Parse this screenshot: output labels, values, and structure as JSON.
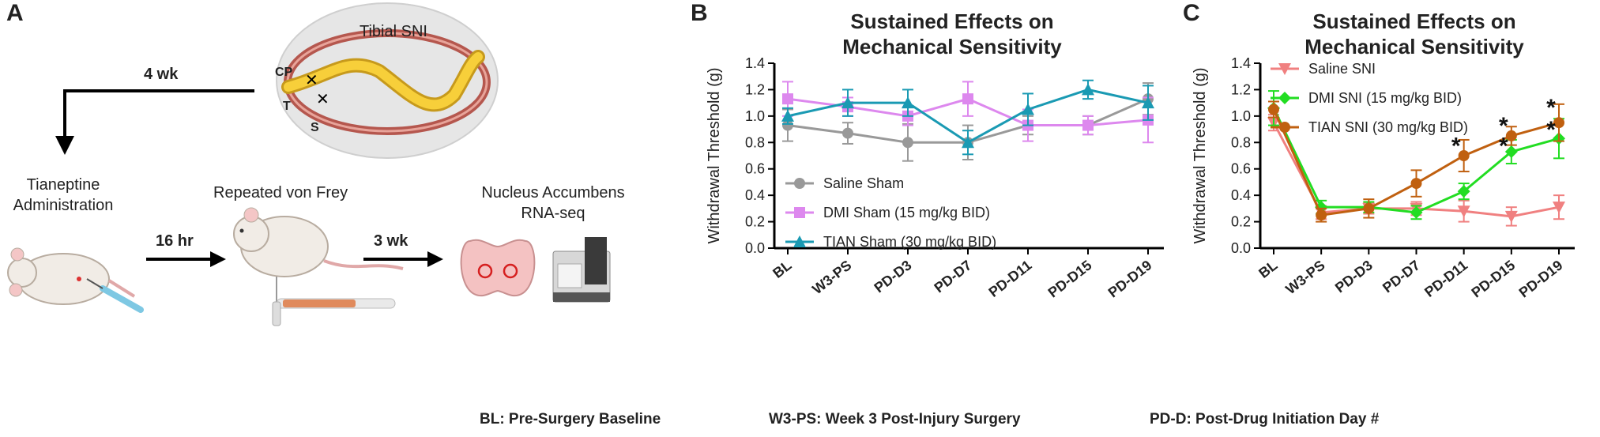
{
  "panels": {
    "a": "A",
    "b": "B",
    "c": "C"
  },
  "schematic": {
    "tibial_sni": "Tibial SNI",
    "nerve_labels": [
      "CP",
      "T",
      "S"
    ],
    "weeks_4": "4 wk",
    "tianeptine": [
      "Tianeptine",
      "Administration"
    ],
    "hr_16": "16 hr",
    "von_frey": "Repeated von Frey",
    "weeks_3": "3 wk",
    "accumbens": [
      "Nucleus Accumbens",
      "RNA-seq"
    ]
  },
  "footnotes": {
    "bl": "BL: Pre-Surgery Baseline",
    "w3": "W3-PS: Week 3 Post-Injury Surgery",
    "pd": "PD-D: Post-Drug Initiation Day #"
  },
  "chart_data": [
    {
      "type": "line",
      "title": [
        "Sustained Effects on",
        "Mechanical Sensitivity"
      ],
      "xlabel": "",
      "ylabel": "Withdrawal Threshold (g)",
      "categories": [
        "BL",
        "W3-PS",
        "PD-D3",
        "PD-D7",
        "PD-D11",
        "PD-D15",
        "PD-D19"
      ],
      "ylim": [
        0,
        1.4
      ],
      "yticks": [
        "0.0",
        "0.2",
        "0.4",
        "0.6",
        "0.8",
        "1.0",
        "1.2",
        "1.4"
      ],
      "legend_position": "bottom-center",
      "series": [
        {
          "name": "Saline Sham",
          "color": "#999999",
          "marker": "circle",
          "values": [
            0.93,
            0.87,
            0.8,
            0.8,
            0.93,
            0.93,
            1.13
          ],
          "errors": [
            0.12,
            0.08,
            0.14,
            0.13,
            0.07,
            0.07,
            0.12
          ]
        },
        {
          "name": "DMI Sham (15 mg/kg BID)",
          "color": "#dd88ee",
          "marker": "square",
          "values": [
            1.13,
            1.07,
            1.0,
            1.13,
            0.93,
            0.93,
            0.97
          ],
          "errors": [
            0.13,
            0.07,
            0.07,
            0.13,
            0.12,
            0.07,
            0.17
          ]
        },
        {
          "name": "TIAN Sham (30 mg/kg BID)",
          "color": "#1a9ab3",
          "marker": "triangle",
          "values": [
            1.0,
            1.1,
            1.1,
            0.8,
            1.05,
            1.2,
            1.1
          ],
          "errors": [
            0.06,
            0.1,
            0.1,
            0.09,
            0.12,
            0.07,
            0.13
          ]
        }
      ],
      "significance": []
    },
    {
      "type": "line",
      "title": [
        "Sustained Effects on",
        "Mechanical Sensitivity"
      ],
      "xlabel": "",
      "ylabel": "Withdrawal Threshold (g)",
      "categories": [
        "BL",
        "W3-PS",
        "PD-D3",
        "PD-D7",
        "PD-D11",
        "PD-D15",
        "PD-D19"
      ],
      "ylim": [
        0,
        1.4
      ],
      "yticks": [
        "0.0",
        "0.2",
        "0.4",
        "0.6",
        "0.8",
        "1.0",
        "1.2",
        "1.4"
      ],
      "legend_position": "top-right",
      "series": [
        {
          "name": "Saline SNI",
          "color": "#f08080",
          "marker": "triangle-down",
          "values": [
            0.95,
            0.27,
            0.3,
            0.3,
            0.28,
            0.24,
            0.31
          ],
          "errors": [
            0.06,
            0.05,
            0.04,
            0.05,
            0.08,
            0.07,
            0.09
          ]
        },
        {
          "name": "DMI SNI (15 mg/kg BID)",
          "color": "#22dd22",
          "marker": "diamond",
          "values": [
            1.06,
            0.31,
            0.31,
            0.27,
            0.43,
            0.73,
            0.83
          ],
          "errors": [
            0.13,
            0.05,
            0.04,
            0.05,
            0.06,
            0.09,
            0.15
          ]
        },
        {
          "name": "TIAN SNI (30 mg/kg BID)",
          "color": "#c06010",
          "marker": "circle",
          "values": [
            1.05,
            0.25,
            0.3,
            0.49,
            0.7,
            0.85,
            0.95
          ],
          "errors": [
            0.06,
            0.05,
            0.07,
            0.1,
            0.12,
            0.07,
            0.14
          ]
        }
      ],
      "significance": [
        {
          "category": "PD-D11",
          "label": "*",
          "value": 0.8
        },
        {
          "category": "PD-D15",
          "label": "*",
          "value": 0.95
        },
        {
          "category": "PD-D15",
          "label": "*",
          "value": 0.8
        },
        {
          "category": "PD-D19",
          "label": "*",
          "value": 1.09
        },
        {
          "category": "PD-D19",
          "label": "*",
          "value": 0.92
        }
      ]
    }
  ]
}
